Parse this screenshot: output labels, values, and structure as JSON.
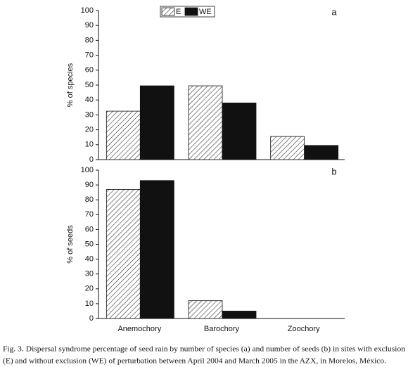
{
  "chart_data": [
    {
      "type": "bar",
      "panel_label": "a",
      "ylabel": "% of species",
      "series": [
        {
          "name": "E",
          "color": "#222222",
          "pattern": "hatch",
          "values": [
            32.5,
            49.5,
            15.5
          ]
        },
        {
          "name": "WE",
          "color": "#111111",
          "pattern": "solid",
          "values": [
            49.5,
            38,
            9.5
          ]
        }
      ],
      "ylim": [
        0,
        100
      ],
      "yticks": [
        0,
        10,
        20,
        30,
        40,
        50,
        60,
        70,
        80,
        90,
        100
      ],
      "legend": "top"
    },
    {
      "type": "bar",
      "panel_label": "b",
      "ylabel": "% of seeds",
      "categories": [
        "Anemochory",
        "Barochory",
        "Zoochory"
      ],
      "series": [
        {
          "color": "#222222",
          "pattern": "hatch",
          "values": [
            87,
            12,
            0
          ]
        },
        {
          "color": "#111111",
          "pattern": "solid",
          "values": [
            93,
            5,
            0
          ]
        }
      ],
      "ylim": [
        0,
        100
      ],
      "yticks": [
        0,
        10,
        20,
        30,
        40,
        50,
        60,
        70,
        80,
        90,
        100
      ]
    }
  ],
  "caption": [
    "Fig. 3. Dispersal syndrome percentage of seed rain by number of species (a) and number of seeds (b) in sites with exclusion",
    "(E) and without exclusion (WE)  of perturbation between April 2004 and March 2005 in the AZX, in Morelos, México."
  ]
}
